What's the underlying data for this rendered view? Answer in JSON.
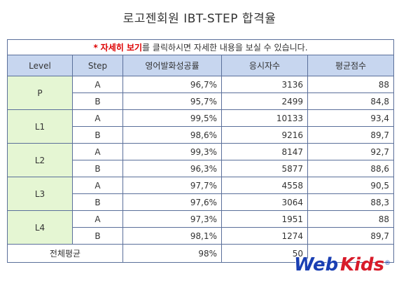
{
  "title": "로고젠회원 IBT-STEP 합격율",
  "notice": {
    "star": "*",
    "link": "자세히 보기",
    "rest": "를 클릭하시면 자세한 내용을 보실 수 있습니다."
  },
  "headers": [
    "Level",
    "Step",
    "영어발화성공률",
    "응시자수",
    "평균점수"
  ],
  "levels": [
    {
      "level": "P",
      "rows": [
        {
          "step": "A",
          "rate": "96,7%",
          "count": "3136",
          "score": "88"
        },
        {
          "step": "B",
          "rate": "95,7%",
          "count": "2499",
          "score": "84,8"
        }
      ]
    },
    {
      "level": "L1",
      "rows": [
        {
          "step": "A",
          "rate": "99,5%",
          "count": "10133",
          "score": "93,4"
        },
        {
          "step": "B",
          "rate": "98,6%",
          "count": "9216",
          "score": "89,7"
        }
      ]
    },
    {
      "level": "L2",
      "rows": [
        {
          "step": "A",
          "rate": "99,3%",
          "count": "8147",
          "score": "92,7"
        },
        {
          "step": "B",
          "rate": "96,3%",
          "count": "5877",
          "score": "88,6"
        }
      ]
    },
    {
      "level": "L3",
      "rows": [
        {
          "step": "A",
          "rate": "97,7%",
          "count": "4558",
          "score": "90,5"
        },
        {
          "step": "B",
          "rate": "97,6%",
          "count": "3064",
          "score": "88,3"
        }
      ]
    },
    {
      "level": "L4",
      "rows": [
        {
          "step": "A",
          "rate": "97,3%",
          "count": "1951",
          "score": "88"
        },
        {
          "step": "B",
          "rate": "98,1%",
          "count": "1274",
          "score": "89,7"
        }
      ]
    }
  ],
  "average": {
    "label": "전체평균",
    "rate": "98%",
    "count": "50"
  },
  "logo": {
    "web": "Web",
    "kids": "Kids",
    "reg": "®"
  },
  "colors": {
    "header_bg": "#c7d6ef",
    "level_bg": "#e5f6d3",
    "border": "#5a6f9a",
    "link": "#dd0000"
  }
}
